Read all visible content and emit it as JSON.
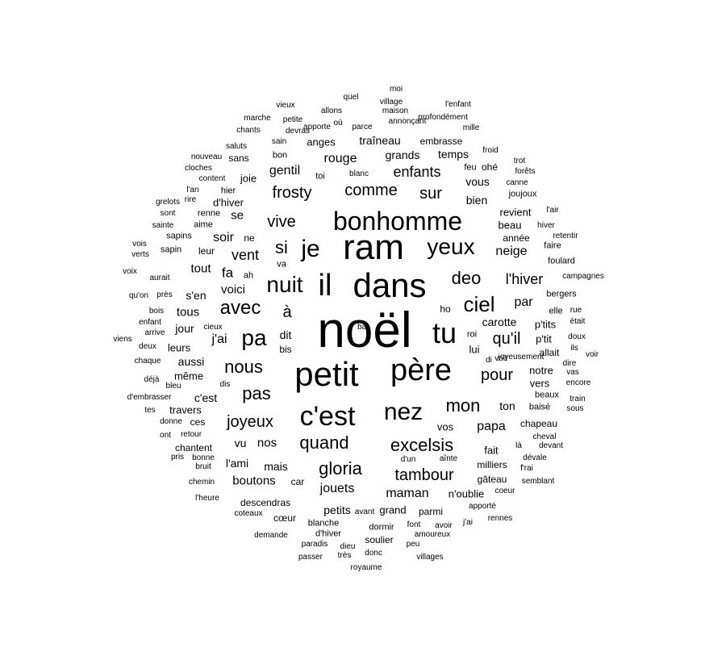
{
  "text_color": "#000000",
  "background_color": "#ffffff",
  "words": [
    {
      "text": "noël"
    },
    {
      "text": "ram"
    },
    {
      "text": "dans"
    },
    {
      "text": "petit"
    },
    {
      "text": "père"
    },
    {
      "text": "bonhomme"
    },
    {
      "text": "c'est"
    },
    {
      "text": "il"
    },
    {
      "text": "tu"
    },
    {
      "text": "nez"
    },
    {
      "text": "nuit"
    },
    {
      "text": "yeux"
    },
    {
      "text": "je"
    },
    {
      "text": "ciel"
    },
    {
      "text": "pa"
    },
    {
      "text": "avec"
    },
    {
      "text": "deo"
    },
    {
      "text": "excelsis"
    },
    {
      "text": "gloria"
    },
    {
      "text": "quand"
    },
    {
      "text": "tambour"
    },
    {
      "text": "mon"
    },
    {
      "text": "nous"
    },
    {
      "text": "pas"
    },
    {
      "text": "joyeux"
    },
    {
      "text": "si"
    },
    {
      "text": "vive"
    },
    {
      "text": "comme"
    },
    {
      "text": "frosty"
    },
    {
      "text": "enfants"
    },
    {
      "text": "sur"
    },
    {
      "text": "pour"
    },
    {
      "text": "qu'il"
    },
    {
      "text": "l'hiver"
    },
    {
      "text": "vent"
    },
    {
      "text": "rouge"
    },
    {
      "text": "à"
    },
    {
      "text": "papa"
    },
    {
      "text": "maman"
    },
    {
      "text": "jouets"
    },
    {
      "text": "boutons"
    },
    {
      "text": "gentil"
    },
    {
      "text": "grands"
    },
    {
      "text": "temps"
    },
    {
      "text": "traîneau"
    },
    {
      "text": "embrasse"
    },
    {
      "text": "anges"
    },
    {
      "text": "vous"
    },
    {
      "text": "bien"
    },
    {
      "text": "revient"
    },
    {
      "text": "beau"
    },
    {
      "text": "année"
    },
    {
      "text": "neige"
    },
    {
      "text": "par"
    },
    {
      "text": "carotte"
    },
    {
      "text": "p'tits"
    },
    {
      "text": "p'tit"
    },
    {
      "text": "lui"
    },
    {
      "text": "roi"
    },
    {
      "text": "ho"
    },
    {
      "text": "allait"
    },
    {
      "text": "notre"
    },
    {
      "text": "vers"
    },
    {
      "text": "beaux"
    },
    {
      "text": "baisé"
    },
    {
      "text": "chapeau"
    },
    {
      "text": "cheval"
    },
    {
      "text": "aime"
    },
    {
      "text": "soir"
    },
    {
      "text": "fa"
    },
    {
      "text": "tout"
    },
    {
      "text": "voici"
    },
    {
      "text": "s'en"
    },
    {
      "text": "tous"
    },
    {
      "text": "jour"
    },
    {
      "text": "j'ai"
    },
    {
      "text": "dit"
    },
    {
      "text": "bis"
    },
    {
      "text": "leurs"
    },
    {
      "text": "aussi"
    },
    {
      "text": "même"
    },
    {
      "text": "c'est"
    },
    {
      "text": "travers"
    },
    {
      "text": "ces"
    },
    {
      "text": "chantent"
    },
    {
      "text": "l'ami"
    },
    {
      "text": "mais"
    },
    {
      "text": "vu"
    },
    {
      "text": "nos"
    },
    {
      "text": "car"
    },
    {
      "text": "descendras"
    },
    {
      "text": "petits"
    },
    {
      "text": "grand"
    },
    {
      "text": "parmi"
    },
    {
      "text": "n'oublie"
    },
    {
      "text": "milliers"
    },
    {
      "text": "fait"
    },
    {
      "text": "vos"
    },
    {
      "text": "ton"
    },
    {
      "text": "gâteau"
    },
    {
      "text": "d'hiver"
    },
    {
      "text": "se"
    },
    {
      "text": "joie"
    },
    {
      "text": "sans"
    },
    {
      "text": "hier"
    },
    {
      "text": "leur"
    },
    {
      "text": "sapin"
    },
    {
      "text": "sapins"
    },
    {
      "text": "renne"
    },
    {
      "text": "ne"
    },
    {
      "text": "va"
    },
    {
      "text": "ah"
    },
    {
      "text": "cœur"
    },
    {
      "text": "soulier"
    },
    {
      "text": "dormir"
    },
    {
      "text": "d'hiver"
    },
    {
      "text": "blanche"
    },
    {
      "text": "bon"
    },
    {
      "text": "toi"
    },
    {
      "text": "blanc"
    },
    {
      "text": "feu"
    },
    {
      "text": "ohé"
    },
    {
      "text": "froid"
    },
    {
      "text": "trot"
    },
    {
      "text": "forêts"
    },
    {
      "text": "canne"
    },
    {
      "text": "joujoux"
    },
    {
      "text": "l'air"
    },
    {
      "text": "hiver"
    },
    {
      "text": "retentir"
    },
    {
      "text": "faire"
    },
    {
      "text": "foulard"
    },
    {
      "text": "campagnes"
    },
    {
      "text": "bergers"
    },
    {
      "text": "elle"
    },
    {
      "text": "rue"
    },
    {
      "text": "était"
    },
    {
      "text": "doux"
    },
    {
      "text": "ils"
    },
    {
      "text": "voir"
    },
    {
      "text": "dire"
    },
    {
      "text": "vas"
    },
    {
      "text": "encore"
    },
    {
      "text": "train"
    },
    {
      "text": "sous"
    },
    {
      "text": "devant"
    },
    {
      "text": "dévale"
    },
    {
      "text": "f'rai"
    },
    {
      "text": "semblant"
    },
    {
      "text": "coeur"
    },
    {
      "text": "apporté"
    },
    {
      "text": "rennes"
    },
    {
      "text": "j'ai"
    },
    {
      "text": "avoir"
    },
    {
      "text": "amoureux"
    },
    {
      "text": "font"
    },
    {
      "text": "peu"
    },
    {
      "text": "villages"
    },
    {
      "text": "donc"
    },
    {
      "text": "royaume"
    },
    {
      "text": "très"
    },
    {
      "text": "dieu"
    },
    {
      "text": "paradis"
    },
    {
      "text": "passer"
    },
    {
      "text": "demande"
    },
    {
      "text": "coteaux"
    },
    {
      "text": "l'heure"
    },
    {
      "text": "chemin"
    },
    {
      "text": "bruit"
    },
    {
      "text": "bonne"
    },
    {
      "text": "pris"
    },
    {
      "text": "retour"
    },
    {
      "text": "ont"
    },
    {
      "text": "donne"
    },
    {
      "text": "tes"
    },
    {
      "text": "d'embrasser"
    },
    {
      "text": "bleu"
    },
    {
      "text": "dis"
    },
    {
      "text": "déjà"
    },
    {
      "text": "chaque"
    },
    {
      "text": "deux"
    },
    {
      "text": "viens"
    },
    {
      "text": "arrive"
    },
    {
      "text": "enfant"
    },
    {
      "text": "cieux"
    },
    {
      "text": "bois"
    },
    {
      "text": "près"
    },
    {
      "text": "qu'on"
    },
    {
      "text": "aurait"
    },
    {
      "text": "voix"
    },
    {
      "text": "verts"
    },
    {
      "text": "vois"
    },
    {
      "text": "sainte"
    },
    {
      "text": "sont"
    },
    {
      "text": "grelots"
    },
    {
      "text": "rire"
    },
    {
      "text": "l'an"
    },
    {
      "text": "content"
    },
    {
      "text": "cloches"
    },
    {
      "text": "nouveau"
    },
    {
      "text": "saluts"
    },
    {
      "text": "chants"
    },
    {
      "text": "marche"
    },
    {
      "text": "vieux"
    },
    {
      "text": "petite"
    },
    {
      "text": "devras"
    },
    {
      "text": "sain"
    },
    {
      "text": "allons"
    },
    {
      "text": "apporte"
    },
    {
      "text": "où"
    },
    {
      "text": "quel"
    },
    {
      "text": "parce"
    },
    {
      "text": "moi"
    },
    {
      "text": "village"
    },
    {
      "text": "maison"
    },
    {
      "text": "annonçant"
    },
    {
      "text": "l'enfant"
    },
    {
      "text": "profondément"
    },
    {
      "text": "mille"
    },
    {
      "text": "joyeusement"
    },
    {
      "text": "voit"
    },
    {
      "text": "di"
    },
    {
      "text": "là"
    },
    {
      "text": "aînte"
    },
    {
      "text": "d'un"
    },
    {
      "text": "avant"
    },
    {
      "text": "bat"
    }
  ]
}
